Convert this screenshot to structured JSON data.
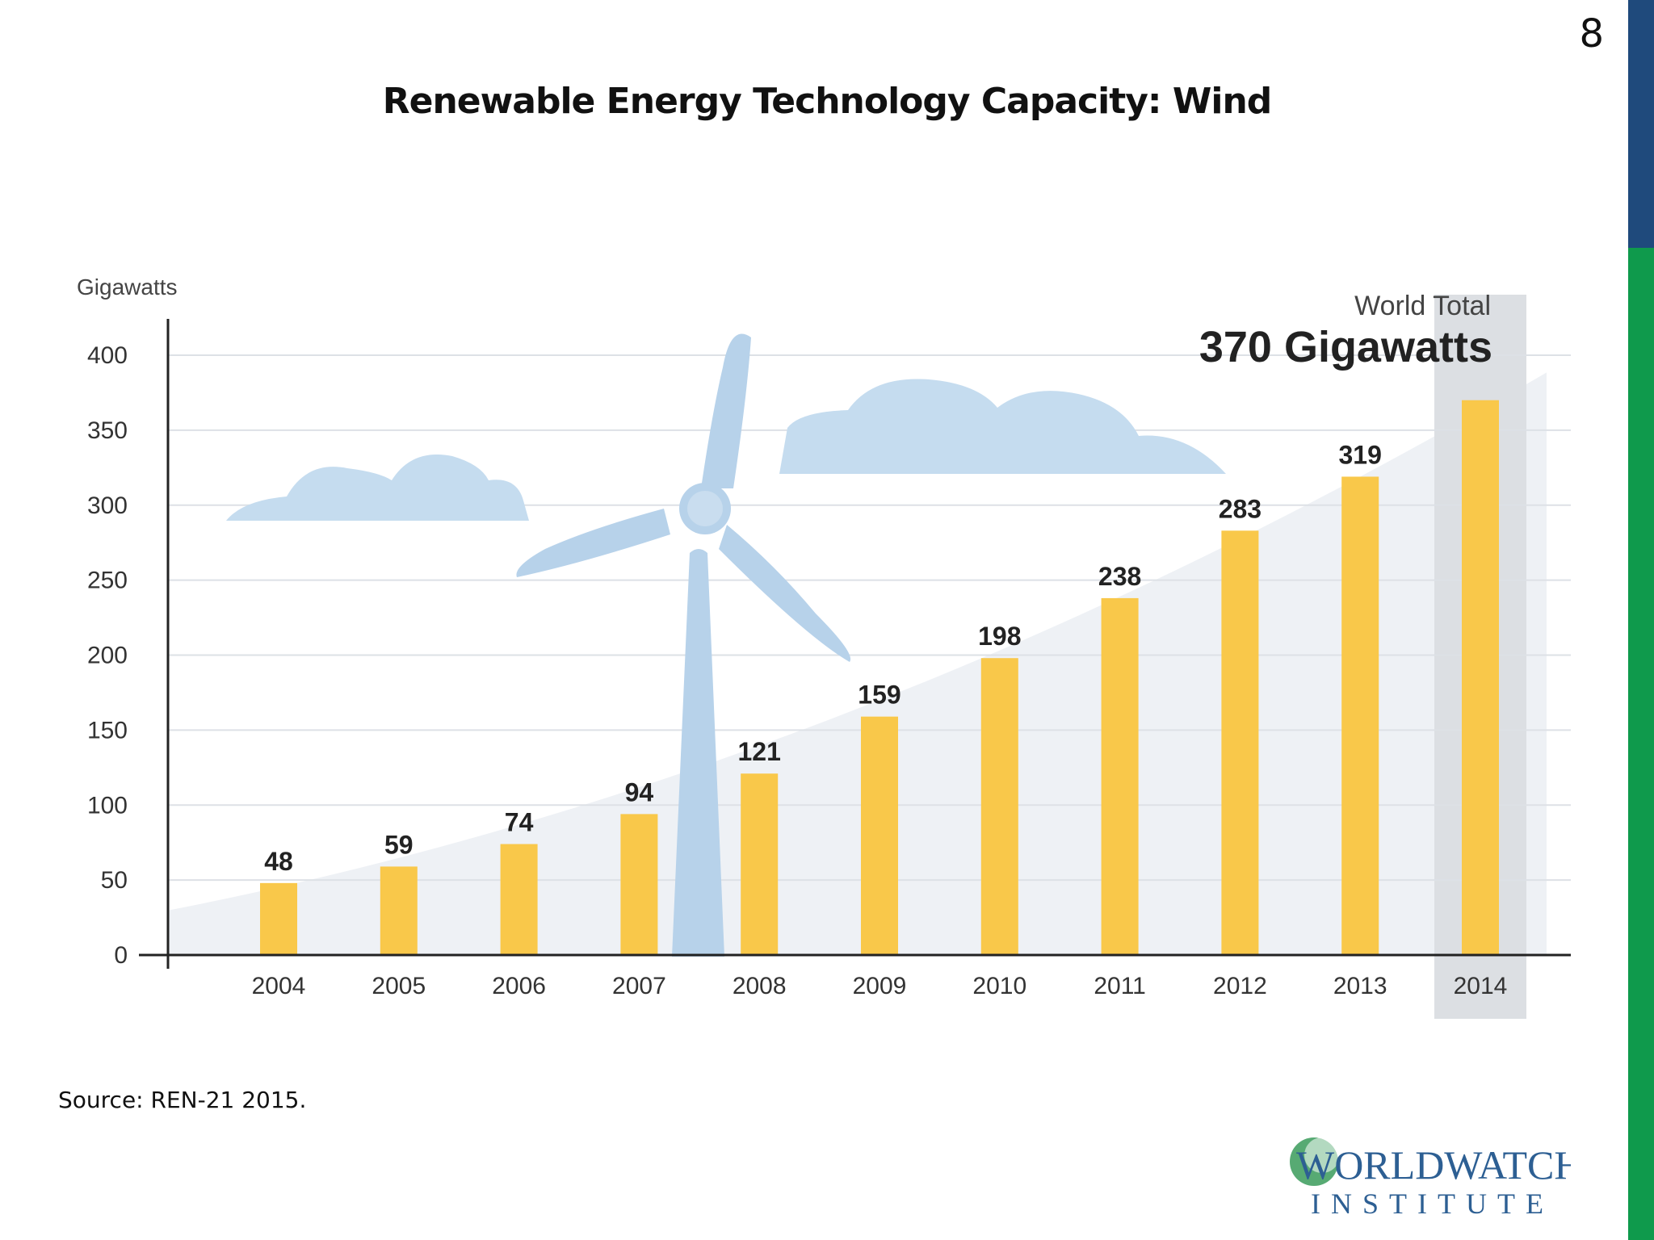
{
  "page_number": "8",
  "slide_title": "Renewable Energy Technology Capacity: Wind",
  "source": "Source: REN-21 2015.",
  "logo": {
    "line1": "WORLDWATCH",
    "line2": "INSTITUTE"
  },
  "colors": {
    "bar": "#f9c84a",
    "axis": "#222222",
    "grid": "#dde1e6",
    "illustration": "#c5dcef",
    "trend_area": "#eef1f5",
    "highlight": "#dcdfe3",
    "side_blue": "#1f4a7c",
    "side_green": "#0f9a4c"
  },
  "chart_data": {
    "type": "bar",
    "ylabel": "Gigawatts",
    "xlabel": "",
    "ylim": [
      0,
      400
    ],
    "yticks": [
      0,
      50,
      100,
      150,
      200,
      250,
      300,
      350,
      400
    ],
    "categories": [
      "2004",
      "2005",
      "2006",
      "2007",
      "2008",
      "2009",
      "2010",
      "2011",
      "2012",
      "2013",
      "2014"
    ],
    "values": [
      48,
      59,
      74,
      94,
      121,
      159,
      198,
      238,
      283,
      319,
      370
    ],
    "data_labels": [
      "48",
      "59",
      "74",
      "94",
      "121",
      "159",
      "198",
      "238",
      "283",
      "319",
      ""
    ],
    "grid": true,
    "highlight_category": "2014",
    "annotation": {
      "label": "World Total",
      "value": "370 Gigawatts"
    }
  }
}
